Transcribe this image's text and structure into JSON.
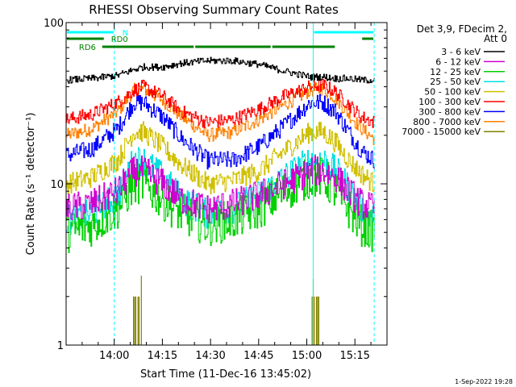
{
  "chart_data": {
    "type": "line",
    "title": "RHESSI Observing Summary Count Rates",
    "xlabel": "Start Time (11-Dec-16 13:45:02)",
    "ylabel": "Count Rate (s⁻¹ detector⁻¹)",
    "yscale": "log",
    "ylim": [
      1,
      100
    ],
    "xlim_minutes_after_start": [
      0,
      100
    ],
    "x_tick_labels": [
      "14:00",
      "14:15",
      "14:30",
      "14:45",
      "15:00",
      "15:15"
    ],
    "x_tick_minutes": [
      15,
      30,
      45,
      60,
      75,
      90
    ],
    "y_tick_labels": [
      "1",
      "10",
      "100"
    ],
    "y_tick_values": [
      1,
      10,
      100
    ],
    "info": [
      "Det 3,9, FDecim 2,",
      "Att 0"
    ],
    "footer": "1-Sep-2022 19:28",
    "x": [
      0,
      8,
      16,
      21,
      24,
      30,
      36,
      44,
      52,
      60,
      68,
      76,
      80,
      84,
      88,
      92,
      96
    ],
    "series": [
      {
        "name": "3 - 6 keV",
        "color": "#000000",
        "values": [
          44,
          45,
          47,
          51,
          53,
          53,
          56,
          58,
          58,
          55,
          50,
          46,
          46,
          45,
          45,
          44,
          44
        ]
      },
      {
        "name": "6 - 12 keV",
        "color": "#d000d0",
        "values": [
          7,
          7.5,
          9,
          12,
          12,
          10,
          8,
          7,
          7.5,
          8.5,
          10,
          12,
          12,
          11,
          9,
          7.5,
          7
        ]
      },
      {
        "name": "12 - 25 keV",
        "color": "#00d000",
        "values": [
          5,
          5.5,
          7,
          10,
          10,
          8,
          6.5,
          5.5,
          6,
          7,
          9,
          11,
          11,
          9,
          7,
          5.5,
          5
        ]
      },
      {
        "name": "25 - 50 keV",
        "color": "#00e0e0",
        "values": [
          6,
          6.5,
          8.5,
          14,
          14,
          11,
          8,
          6.5,
          7,
          8.5,
          11,
          14,
          14,
          12,
          9.5,
          7,
          6
        ]
      },
      {
        "name": "50 - 100 keV",
        "color": "#d0c000",
        "values": [
          10,
          11,
          14,
          21,
          21,
          17,
          13,
          10,
          10.5,
          12,
          16,
          21,
          21,
          18,
          14,
          11.5,
          10
        ]
      },
      {
        "name": "100 - 300 keV",
        "color": "#ff0000",
        "values": [
          25,
          27,
          32,
          38,
          40,
          35,
          28,
          24,
          25,
          29,
          35,
          40,
          41,
          37,
          31,
          26,
          24
        ]
      },
      {
        "name": "300 - 800 keV",
        "color": "#0000ff",
        "values": [
          15,
          16.5,
          22,
          32,
          32,
          26,
          19,
          14,
          14,
          17,
          23,
          32,
          32,
          28,
          21,
          16,
          14
        ]
      },
      {
        "name": "800 - 7000 keV",
        "color": "#ff8000",
        "values": [
          20,
          22,
          28,
          38,
          39,
          33,
          26,
          20,
          21,
          25,
          31,
          38,
          39,
          34,
          27,
          22,
          19
        ]
      },
      {
        "name": "7000 - 15000 keV",
        "color": "#808000",
        "values": [
          null,
          null,
          null,
          2,
          2,
          null,
          null,
          null,
          null,
          null,
          null,
          2,
          2,
          null,
          null,
          null,
          null
        ]
      }
    ],
    "flags": [
      {
        "label": "N",
        "color": "#00ffff",
        "segments": [
          [
            0,
            15
          ],
          [
            77,
            96
          ]
        ]
      },
      {
        "label": "RD0",
        "color": "#008000",
        "segments": [
          [
            0,
            12
          ],
          [
            92,
            96
          ]
        ]
      },
      {
        "label": "RD6",
        "color": "#008000",
        "segments": [
          [
            11,
            40
          ],
          [
            40,
            64
          ],
          [
            64,
            84
          ]
        ]
      }
    ],
    "vertical_markers": {
      "color": "#00ffff",
      "x": [
        0,
        15,
        77,
        96
      ]
    }
  }
}
